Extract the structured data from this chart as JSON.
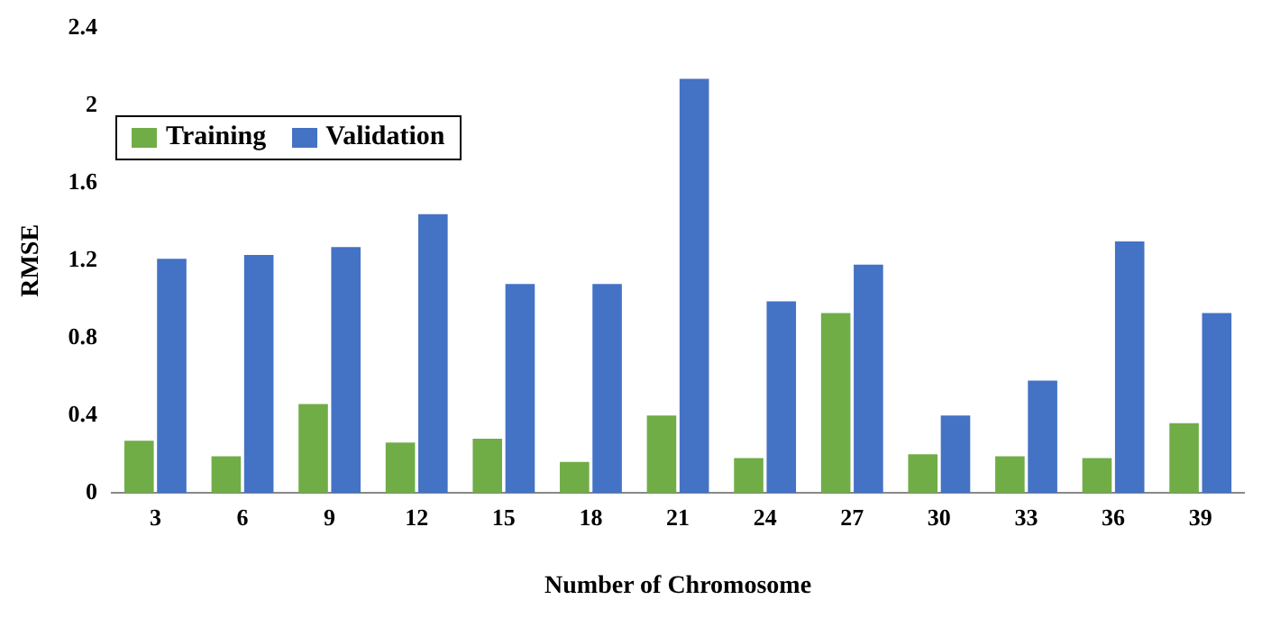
{
  "chart_data": {
    "type": "bar",
    "xlabel": "Number of Chromosome",
    "ylabel": "RMSE",
    "categories": [
      "3",
      "6",
      "9",
      "12",
      "15",
      "18",
      "21",
      "24",
      "27",
      "30",
      "33",
      "36",
      "39"
    ],
    "series": [
      {
        "name": "Training",
        "color": "#70ad47",
        "values": [
          0.27,
          0.19,
          0.46,
          0.26,
          0.28,
          0.16,
          0.4,
          0.18,
          0.93,
          0.2,
          0.19,
          0.18,
          0.36
        ]
      },
      {
        "name": "Validation",
        "color": "#4472c4",
        "values": [
          1.21,
          1.23,
          1.27,
          1.44,
          1.08,
          1.08,
          2.14,
          0.99,
          1.18,
          0.4,
          0.58,
          1.3,
          0.93
        ]
      }
    ],
    "ylim": [
      0,
      2.4
    ],
    "yticks": [
      0,
      0.4,
      0.8,
      1.2,
      1.6,
      2,
      2.4
    ],
    "grid": false,
    "legend": "top left"
  }
}
